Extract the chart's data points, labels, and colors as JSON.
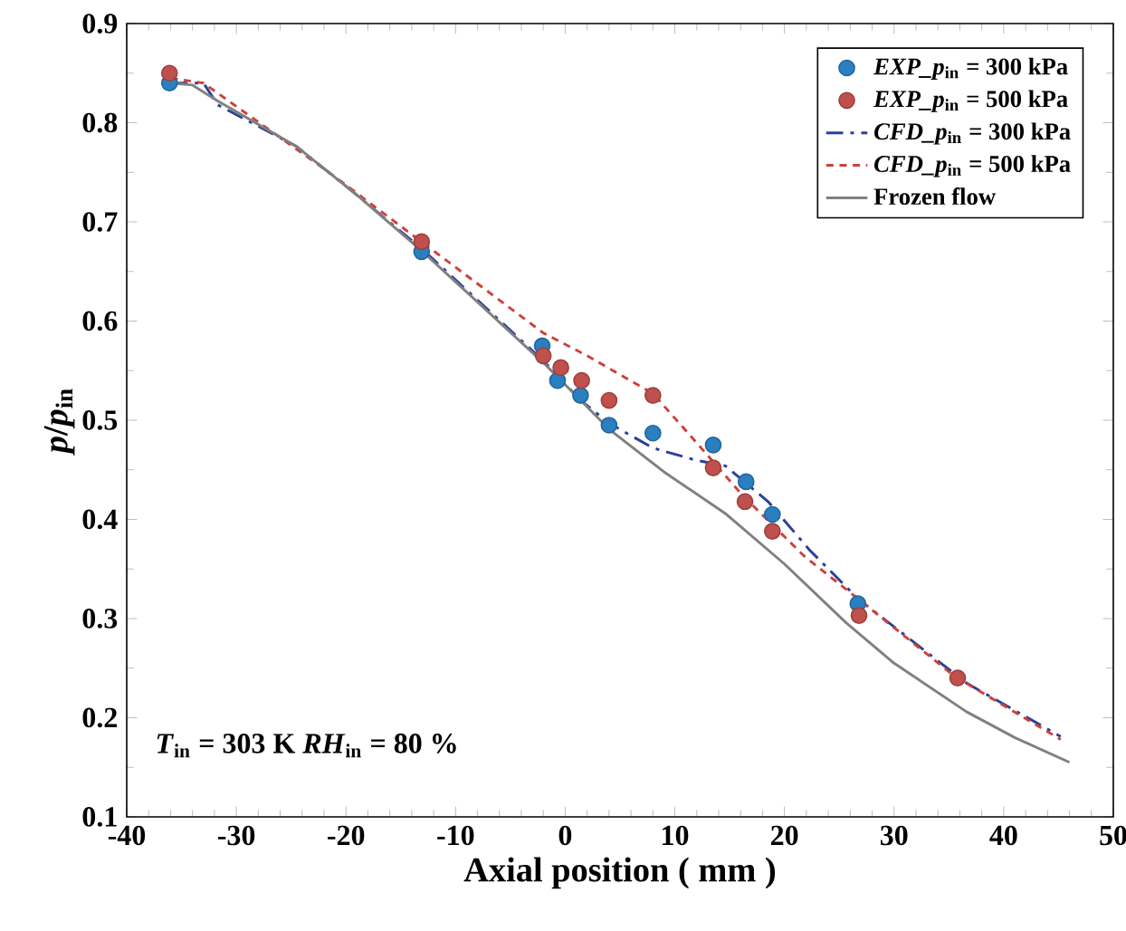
{
  "chart_data": {
    "type": "line",
    "xlabel": "Axial position ( mm )",
    "ylabel": "*p*/*p*$_{in}$",
    "xlim": [
      -40,
      50
    ],
    "xticks": [
      -40,
      -30,
      -20,
      -10,
      0,
      10,
      20,
      30,
      40,
      50
    ],
    "ylim": [
      0.1,
      0.9
    ],
    "yticks": [
      0.1,
      0.2,
      0.3,
      0.4,
      0.5,
      0.6,
      0.7,
      0.8,
      0.9
    ],
    "grid": false,
    "legend": "top right",
    "annotations": [
      "*T*$_{in}$ = 303 K  *RH*$_{in}$ = 80 %"
    ],
    "series": [
      {
        "name": "*EXP_p*$_{in}$ = 300 kPa",
        "type": "scatter",
        "marker": "circle",
        "color": "#2a7fc1",
        "x": [
          -36.1,
          -13.1,
          -2.1,
          -0.7,
          1.4,
          4.0,
          8.0,
          13.5,
          16.5,
          18.9,
          26.7
        ],
        "values": [
          0.84,
          0.67,
          0.575,
          0.54,
          0.525,
          0.495,
          0.487,
          0.475,
          0.438,
          0.405,
          0.315
        ]
      },
      {
        "name": "*EXP_p*$_{in}$ = 500 kPa",
        "type": "scatter",
        "marker": "circle",
        "color": "#c0504d",
        "x": [
          -36.1,
          -13.1,
          -2.0,
          -0.4,
          1.5,
          4.0,
          8.0,
          13.5,
          16.4,
          18.9,
          26.8,
          35.8
        ],
        "values": [
          0.85,
          0.68,
          0.565,
          0.553,
          0.54,
          0.52,
          0.525,
          0.452,
          0.418,
          0.388,
          0.303,
          0.24
        ]
      },
      {
        "name": "*CFD_p*$_{in}$ = 300 kPa",
        "line_style": "dashdot",
        "marker": "none",
        "color": "#2b3f99",
        "x": [
          -36,
          -33,
          -31.7,
          -24.5,
          -19,
          -13,
          -2.0,
          1.4,
          4.0,
          8.0,
          11.8,
          14.6,
          18.5,
          22.3,
          26.7,
          36.6,
          45.2
        ],
        "values": [
          0.84,
          0.84,
          0.818,
          0.776,
          0.727,
          0.672,
          0.56,
          0.52,
          0.497,
          0.472,
          0.46,
          0.454,
          0.418,
          0.369,
          0.32,
          0.235,
          0.181
        ]
      },
      {
        "name": "*CFD_p*$_{in}$ = 500 kPa",
        "line_style": "dashed",
        "marker": "none",
        "color": "#d0403a",
        "x": [
          -36,
          -33,
          -21.8,
          -13,
          -2.0,
          2.0,
          8.0,
          12.4,
          16.2,
          21.8,
          26.7,
          35.5,
          45.2
        ],
        "values": [
          0.845,
          0.84,
          0.752,
          0.679,
          0.588,
          0.565,
          0.527,
          0.472,
          0.424,
          0.363,
          0.32,
          0.242,
          0.178
        ]
      },
      {
        "name": "**Frozen flow**",
        "line_style": "solid",
        "marker": "none",
        "color": "#808080",
        "x": [
          -36,
          -34,
          -31.7,
          -24.5,
          -19,
          -13,
          -1.9,
          4.1,
          9,
          14.6,
          20,
          25.6,
          30,
          36.6,
          41,
          46
        ],
        "values": [
          0.84,
          0.838,
          0.822,
          0.776,
          0.727,
          0.67,
          0.557,
          0.49,
          0.448,
          0.406,
          0.355,
          0.296,
          0.255,
          0.206,
          0.18,
          0.155
        ]
      }
    ]
  }
}
